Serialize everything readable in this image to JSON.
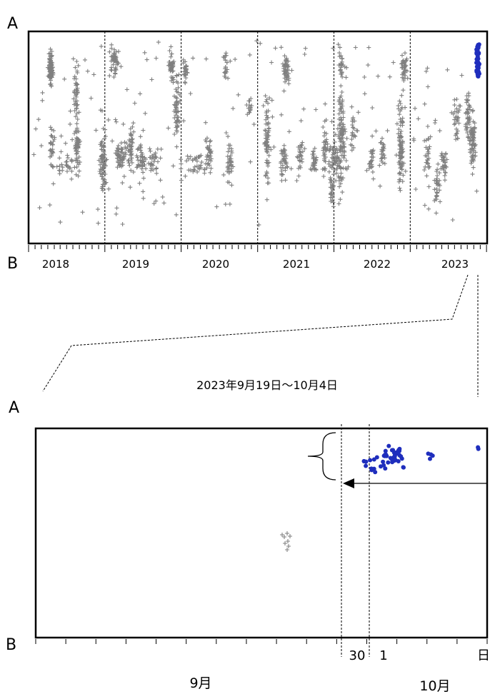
{
  "chart_data": [
    {
      "type": "scatter",
      "end_label_top": "A",
      "end_label_bottom": "B",
      "x_tick_labels": [
        "2018",
        "2019",
        "2020",
        "2021",
        "2022",
        "2023"
      ],
      "xlim": [
        "2017-10-01",
        "2023-10-04"
      ],
      "year_dividers": [
        "2018-10-01",
        "2019-10-01",
        "2020-10-01",
        "2021-10-01",
        "2022-10-01"
      ],
      "marker_colors": {
        "previous": "#808080",
        "current": "#1f2ebd"
      },
      "grid": false,
      "legend": "none"
    },
    {
      "type": "scatter",
      "title": "2023年9月19日～10月4日",
      "end_label_top": "A",
      "end_label_bottom": "B",
      "xlim": [
        "2023-09-19",
        "2023-10-04"
      ],
      "x_tick_labels": [
        "30",
        "1",
        "日"
      ],
      "x_month_labels": [
        "9月",
        "10月"
      ],
      "reference_lines": [
        "2023-09-30",
        "2023-10-01"
      ],
      "marker_colors": {
        "previous": "#808080",
        "current": "#1f2ebd"
      },
      "grid": false,
      "legend": "none"
    }
  ]
}
